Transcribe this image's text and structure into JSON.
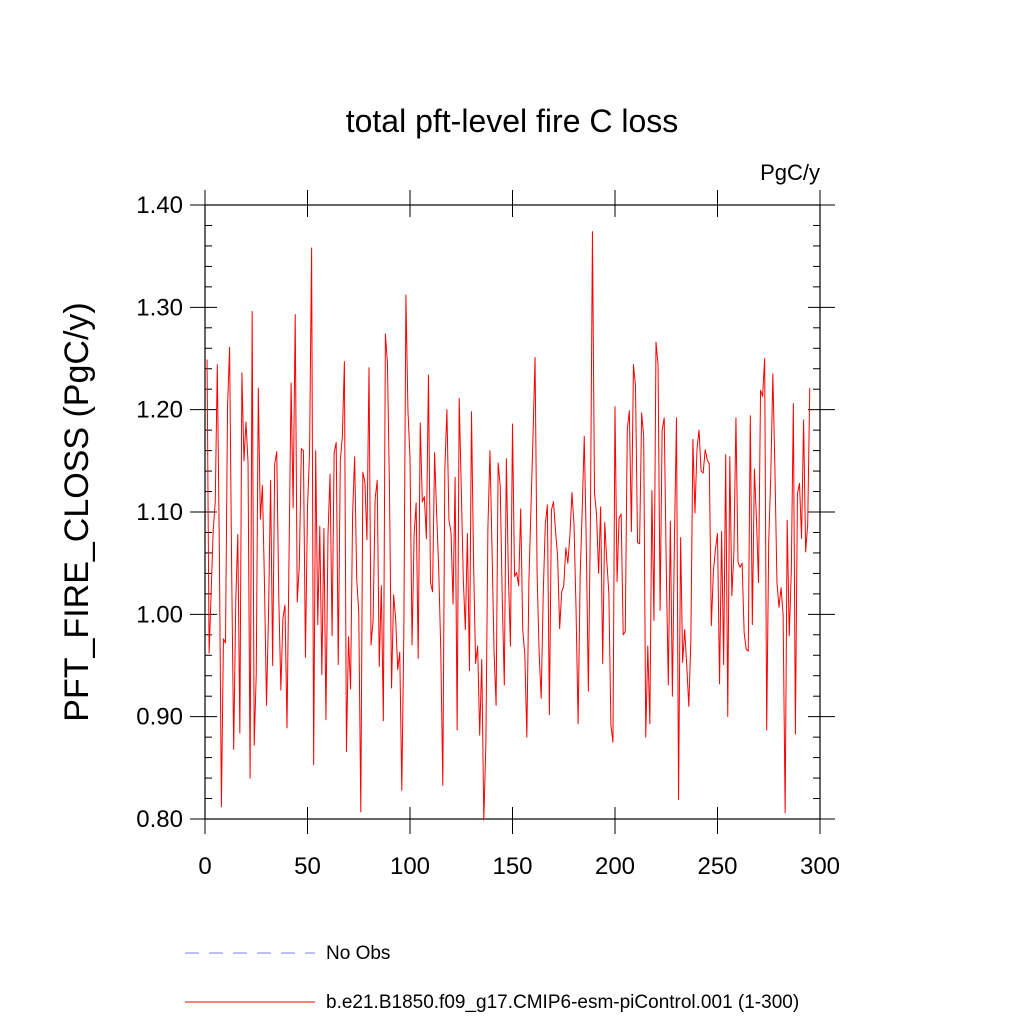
{
  "chart_data": {
    "type": "line",
    "title": "total pft-level fire C loss",
    "units_label": "PgC/y",
    "xlabel": "",
    "ylabel": "PFT_FIRE_CLOSS  (PgC/y)",
    "xlim": [
      0,
      300
    ],
    "ylim": [
      0.8,
      1.4
    ],
    "xticks": [
      0,
      50,
      100,
      150,
      200,
      250,
      300
    ],
    "xtick_labels": [
      "0",
      "50",
      "100",
      "150",
      "200",
      "250",
      "300"
    ],
    "yticks": [
      0.8,
      0.9,
      1.0,
      1.1,
      1.2,
      1.3,
      1.4
    ],
    "ytick_labels": [
      "0.80",
      "0.90",
      "1.00",
      "1.10",
      "1.20",
      "1.30",
      "1.40"
    ],
    "grid": false,
    "legend_position": "bottom",
    "series": [
      {
        "name": "b.e21.B1850.f09_g17.CMIP6-esm-piControl.001 (1-300)",
        "color": "#ff0000",
        "style": "solid",
        "x_start": 1,
        "values": [
          1.249,
          0.962,
          1.021,
          1.082,
          1.11,
          1.244,
          1.063,
          0.812,
          0.976,
          0.972,
          1.203,
          1.261,
          1.044,
          0.868,
          1.012,
          1.078,
          0.884,
          1.236,
          1.15,
          1.188,
          1.148,
          0.84,
          1.296,
          0.872,
          0.942,
          1.221,
          1.093,
          1.126,
          1.031,
          0.911,
          1.001,
          1.131,
          0.95,
          1.147,
          1.159,
          1.016,
          0.926,
          0.996,
          1.009,
          0.889,
          1.058,
          1.226,
          1.104,
          1.293,
          1.012,
          1.048,
          1.162,
          1.16,
          0.958,
          1.104,
          1.158,
          1.358,
          0.853,
          1.16,
          0.99,
          1.086,
          0.941,
          1.084,
          0.897,
          1.078,
          1.137,
          0.979,
          1.158,
          1.168,
          0.951,
          1.15,
          1.174,
          1.247,
          0.866,
          0.978,
          0.927,
          1.098,
          1.154,
          1.035,
          1.002,
          0.807,
          1.139,
          1.129,
          1.073,
          1.241,
          0.97,
          0.994,
          1.113,
          1.131,
          0.949,
          1.028,
          0.896,
          1.274,
          1.245,
          1.12,
          0.928,
          1.019,
          0.996,
          0.946,
          0.963,
          0.828,
          0.984,
          1.312,
          1.199,
          1.153,
          0.97,
          1.077,
          1.109,
          0.957,
          1.187,
          1.11,
          1.115,
          1.074,
          1.234,
          1.031,
          1.022,
          1.158,
          1.098,
          1.045,
          0.966,
          0.833,
          1.142,
          1.2,
          1.092,
          1.08,
          1.01,
          1.134,
          0.887,
          1.211,
          1.124,
          1.034,
          0.985,
          1.079,
          0.945,
          1.198,
          1.051,
          0.952,
          0.969,
          0.882,
          0.956,
          0.799,
          0.872,
          1.084,
          1.16,
          1.065,
          0.964,
          0.911,
          1.148,
          1.126,
          1.016,
          0.931,
          1.152,
          1.037,
          0.969,
          1.186,
          1.037,
          1.041,
          1.028,
          1.103,
          0.985,
          0.961,
          0.88,
          1.032,
          1.104,
          1.174,
          1.251,
          1.04,
          0.962,
          0.918,
          1.021,
          1.088,
          1.107,
          0.902,
          1.102,
          1.11,
          1.081,
          1.057,
          0.986,
          1.022,
          1.028,
          1.065,
          1.05,
          1.077,
          1.119,
          1.088,
          1.005,
          0.893,
          1.037,
          1.102,
          1.174,
          1.068,
          0.925,
          1.09,
          1.374,
          1.119,
          1.097,
          1.04,
          1.105,
          0.952,
          1.09,
          1.052,
          1.021,
          0.892,
          0.875,
          1.203,
          1.032,
          1.094,
          1.098,
          0.98,
          0.983,
          1.181,
          1.199,
          1.081,
          1.244,
          1.223,
          1.07,
          1.069,
          1.197,
          1.174,
          0.88,
          0.969,
          0.893,
          1.121,
          0.994,
          1.266,
          1.244,
          1.004,
          1.18,
          1.192,
          1.046,
          0.931,
          1.091,
          0.92,
          1.074,
          1.192,
          0.819,
          1.075,
          0.953,
          0.985,
          0.95,
          0.91,
          0.974,
          1.171,
          1.099,
          1.162,
          1.18,
          1.14,
          1.138,
          1.161,
          1.151,
          1.147,
          0.989,
          1.042,
          1.064,
          1.079,
          0.932,
          1.081,
          0.951,
          1.156,
          0.9,
          1.154,
          1.018,
          1.061,
          1.192,
          1.051,
          1.046,
          1.05,
          0.982,
          0.966,
          0.964,
          1.194,
          0.99,
          1.142,
          1.093,
          1.031,
          1.219,
          1.213,
          1.25,
          0.887,
          1.072,
          1.136,
          1.235,
          1.143,
          1.031,
          1.007,
          1.026,
          1.0,
          0.806,
          1.092,
          0.979,
          1.042,
          1.206,
          0.883,
          1.118,
          1.128,
          1.074,
          1.19,
          1.061,
          1.088,
          1.221
        ]
      },
      {
        "name": "No Obs",
        "color": "#8080e0",
        "style": "dashed",
        "values": []
      }
    ]
  }
}
